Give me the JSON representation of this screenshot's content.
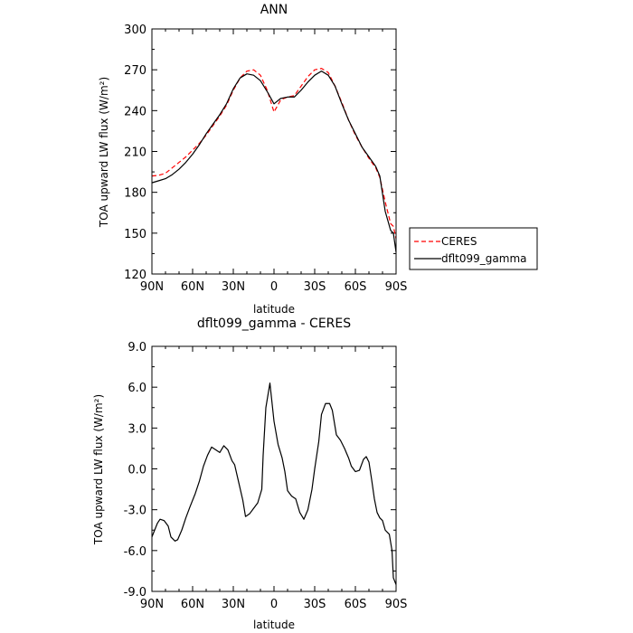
{
  "chart_data": [
    {
      "type": "line",
      "title": "ANN",
      "xlabel": "latitude",
      "ylabel": "TOA upward LW flux (W/m²)",
      "xlim": [
        90,
        -90
      ],
      "ylim": [
        120,
        300
      ],
      "xticks": [
        90,
        60,
        30,
        0,
        -30,
        -60,
        -90
      ],
      "xtick_labels": [
        "90N",
        "60N",
        "30N",
        "0",
        "30S",
        "60S",
        "90S"
      ],
      "yticks": [
        120,
        150,
        180,
        210,
        240,
        270,
        300
      ],
      "ytick_labels": [
        "120",
        "150",
        "180",
        "210",
        "240",
        "270",
        "300"
      ],
      "grid": false,
      "legend": "right",
      "series": [
        {
          "name": "CERES",
          "color": "#ff0000",
          "dash": "dashed",
          "x": [
            90,
            85,
            80,
            75,
            70,
            65,
            60,
            55,
            50,
            45,
            40,
            35,
            30,
            25,
            20,
            15,
            10,
            5,
            0,
            -5,
            -10,
            -15,
            -20,
            -25,
            -30,
            -35,
            -40,
            -45,
            -50,
            -55,
            -60,
            -65,
            -70,
            -75,
            -78,
            -82,
            -86,
            -88,
            -90
          ],
          "y": [
            192,
            192.5,
            194,
            198,
            202,
            206,
            211,
            216,
            222,
            229,
            236,
            244,
            255,
            264,
            269,
            270,
            266,
            255,
            239,
            248,
            250,
            251,
            258,
            265,
            270,
            271,
            268,
            258,
            246,
            233,
            222,
            213,
            205,
            198,
            191,
            173,
            157,
            155,
            146
          ]
        },
        {
          "name": "dflt099_gamma",
          "color": "#000000",
          "dash": "solid",
          "x": [
            90,
            85,
            80,
            75,
            70,
            65,
            60,
            55,
            50,
            45,
            40,
            35,
            30,
            25,
            20,
            15,
            10,
            5,
            0,
            -5,
            -10,
            -15,
            -20,
            -25,
            -30,
            -35,
            -40,
            -45,
            -50,
            -55,
            -60,
            -65,
            -70,
            -75,
            -78,
            -82,
            -86,
            -88,
            -90
          ],
          "y": [
            187,
            188.5,
            190,
            193,
            197,
            202,
            208,
            215,
            223,
            230,
            237,
            245,
            256,
            264,
            267,
            266,
            262,
            254,
            245,
            249,
            250,
            250,
            255,
            261,
            266,
            269,
            266,
            258,
            245,
            233,
            223,
            213,
            206,
            199,
            192,
            166,
            152,
            150,
            136
          ]
        }
      ]
    },
    {
      "type": "line",
      "title": "dflt099_gamma - CERES",
      "xlabel": "latitude",
      "ylabel": "TOA upward LW flux (W/m²)",
      "xlim": [
        90,
        -90
      ],
      "ylim": [
        -9,
        9
      ],
      "xticks": [
        90,
        60,
        30,
        0,
        -30,
        -60,
        -90
      ],
      "xtick_labels": [
        "90N",
        "60N",
        "30N",
        "0",
        "30S",
        "60S",
        "90S"
      ],
      "yticks": [
        -9,
        -6,
        -3,
        0,
        3,
        6,
        9
      ],
      "ytick_labels": [
        "-9.0",
        "-6.0",
        "-3.0",
        "0.0",
        "3.0",
        "6.0",
        "9.0"
      ],
      "grid": false,
      "series": [
        {
          "color": "#000000",
          "dash": "solid",
          "x": [
            90,
            86,
            84,
            81,
            78,
            76,
            73,
            71,
            68,
            65,
            62,
            58,
            55,
            52,
            49,
            46,
            43,
            40,
            37,
            34,
            31,
            29,
            26,
            23,
            21,
            18,
            15,
            12,
            9,
            8,
            6,
            3,
            0,
            -3,
            -6,
            -8,
            -10,
            -13,
            -16,
            -19,
            -22,
            -25,
            -28,
            -30,
            -33,
            -35,
            -38,
            -41,
            -43,
            -46,
            -49,
            -52,
            -55,
            -57,
            -60,
            -63,
            -66,
            -68,
            -70,
            -72,
            -74,
            -76,
            -78,
            -80,
            -82,
            -85,
            -87,
            -88,
            -90
          ],
          "y": [
            -5.0,
            -4.0,
            -3.7,
            -3.8,
            -4.2,
            -5.0,
            -5.3,
            -5.2,
            -4.5,
            -3.6,
            -2.8,
            -1.8,
            -0.9,
            0.2,
            1.0,
            1.6,
            1.4,
            1.2,
            1.7,
            1.4,
            0.6,
            0.3,
            -1.0,
            -2.3,
            -3.5,
            -3.3,
            -2.9,
            -2.5,
            -1.5,
            1.0,
            4.5,
            6.3,
            3.5,
            1.8,
            0.8,
            -0.2,
            -1.6,
            -2.0,
            -2.2,
            -3.2,
            -3.7,
            -3.0,
            -1.5,
            0.0,
            2.0,
            4.0,
            4.8,
            4.8,
            4.3,
            2.5,
            2.1,
            1.5,
            0.8,
            0.2,
            -0.2,
            -0.1,
            0.7,
            0.9,
            0.5,
            -0.8,
            -2.2,
            -3.2,
            -3.6,
            -3.8,
            -4.5,
            -4.8,
            -6.0,
            -8.0,
            -8.5
          ]
        }
      ]
    }
  ]
}
